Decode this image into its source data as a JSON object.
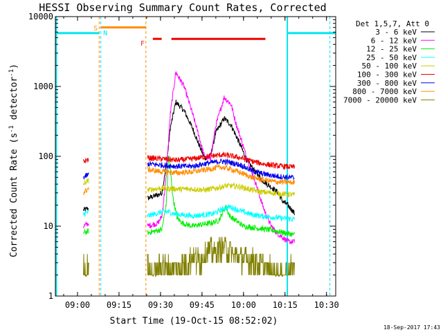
{
  "chart_data": {
    "type": "line",
    "title": "HESSI Observing Summary Count Rates, Corrected",
    "xlabel": "Start Time (19-Oct-15 08:52:02)",
    "ylabel_parts": [
      "Corrected Count Rate (s",
      "-1",
      " detector",
      "-1",
      ")"
    ],
    "y_scale": "log",
    "ylim": [
      1,
      10000
    ],
    "xlim_minutes": [
      -0.03,
      101.3
    ],
    "x_ticks": [
      {
        "label": "09:00",
        "minutes": 7.97
      },
      {
        "label": "09:15",
        "minutes": 22.97
      },
      {
        "label": "09:30",
        "minutes": 37.97
      },
      {
        "label": "09:45",
        "minutes": 52.97
      },
      {
        "label": "10:00",
        "minutes": 67.97
      },
      {
        "label": "10:15",
        "minutes": 82.97
      },
      {
        "label": "10:30",
        "minutes": 97.97
      }
    ],
    "y_ticks": [
      {
        "label": "1",
        "value": 1
      },
      {
        "label": "10",
        "value": 10
      },
      {
        "label": "100",
        "value": 100
      },
      {
        "label": "1000",
        "value": 1000
      },
      {
        "label": "10000",
        "value": 10000
      }
    ],
    "legend": {
      "placement": "right",
      "header": "Det 1,5,7, Att 0"
    },
    "markers": [
      {
        "label": "S",
        "color": "#ff8c00",
        "time_minutes": 16.0
      },
      {
        "label": "N",
        "color": "#00e5ee",
        "time_minutes": 16.5
      },
      {
        "label": "F",
        "color": "#ee2222",
        "time_minutes": 33.0
      }
    ],
    "night_lines_minutes": [
      16.4,
      83.8,
      99.2
    ],
    "saa_lines_minutes": [
      15.8,
      32.7
    ],
    "bars": [
      {
        "name": "eclipse",
        "color": "#00e5ee",
        "segments": [
          [
            0,
            15.9,
            5800
          ],
          [
            83.8,
            101.3,
            5800
          ]
        ]
      },
      {
        "name": "saa",
        "color": "#ff8c00",
        "segments": [
          [
            16.4,
            32.6,
            7000
          ]
        ]
      },
      {
        "name": "flare",
        "color": "#ee0000",
        "segments": [
          [
            35.2,
            38.4,
            4800
          ],
          [
            41.9,
            75.9,
            4800
          ]
        ]
      }
    ],
    "series": [
      {
        "name": "3 - 6 keV",
        "color": "#000000",
        "x": [
          10.1,
          12.0,
          33.2,
          37.0,
          38.5,
          40.2,
          41.5,
          43.5,
          46.5,
          49.6,
          51.8,
          53.8,
          56.0,
          58.0,
          61.0,
          63.5,
          65.2,
          67.0,
          69.0,
          71.0,
          73.0,
          75.0,
          76.5,
          78.5,
          80.5,
          82.0,
          84.0,
          85.5,
          86.5
        ],
        "y": [
          17,
          18,
          25,
          28,
          30,
          80,
          250,
          600,
          450,
          250,
          150,
          95,
          100,
          220,
          350,
          280,
          200,
          140,
          90,
          70,
          55,
          45,
          40,
          35,
          30,
          23,
          20,
          17,
          15
        ]
      },
      {
        "name": "6 - 12 keV",
        "color": "#ff00ff",
        "x": [
          10.1,
          12.0,
          33.2,
          37.0,
          38.5,
          40.0,
          41.5,
          43.5,
          46.5,
          49.6,
          51.8,
          53.8,
          56.0,
          58.0,
          61.0,
          63.5,
          65.2,
          67.0,
          69.0,
          71.0,
          73.0,
          74.5,
          76.0,
          78.0,
          80.0,
          82.0,
          84.0,
          86.5
        ],
        "y": [
          10,
          11,
          10,
          11,
          14,
          50,
          400,
          1600,
          1000,
          400,
          200,
          100,
          90,
          280,
          700,
          550,
          300,
          180,
          100,
          60,
          35,
          22,
          15,
          10,
          8,
          7,
          6,
          6
        ]
      },
      {
        "name": "12 - 25 keV",
        "color": "#00ee00",
        "x": [
          10.1,
          12.0,
          33.2,
          36.0,
          38.5,
          40.0,
          41.0,
          42.5,
          44.0,
          46.0,
          49.6,
          52.0,
          56.0,
          59.0,
          61.5,
          63.0,
          65.2,
          68.0,
          72.0,
          76.0,
          80.0,
          83.0,
          86.5
        ],
        "y": [
          8,
          8.5,
          8,
          8.5,
          9,
          20,
          110,
          25,
          13,
          11,
          10,
          10.5,
          11,
          12,
          19,
          14,
          12,
          10,
          9.5,
          9,
          8.5,
          8,
          7.5
        ]
      },
      {
        "name": "25 - 50 keV",
        "color": "#00ffff",
        "x": [
          10.1,
          12.0,
          33.2,
          36.0,
          38.5,
          41.0,
          43.0,
          46.0,
          49.6,
          53.0,
          57.0,
          61.0,
          63.0,
          66.0,
          70.0,
          74.0,
          78.0,
          82.0,
          86.5
        ],
        "y": [
          15,
          16,
          14,
          15,
          16,
          16,
          15,
          14.5,
          14,
          14.5,
          15,
          18,
          19,
          17,
          15,
          14,
          13.5,
          13,
          12.5
        ]
      },
      {
        "name": "50 - 100 keV",
        "color": "#cccc00",
        "x": [
          10.1,
          12.0,
          33.2,
          38.5,
          45.0,
          49.6,
          54.0,
          58.0,
          62.0,
          66.0,
          70.0,
          74.0,
          78.0,
          82.0,
          86.5
        ],
        "y": [
          40,
          45,
          33,
          35,
          34,
          34,
          33,
          35,
          38,
          37,
          34,
          31,
          30,
          29,
          28
        ]
      },
      {
        "name": "100 - 300 keV",
        "color": "#ee0000",
        "x": [
          10.1,
          12.0,
          33.2,
          38.5,
          44.0,
          49.6,
          55.0,
          60.0,
          63.0,
          67.0,
          71.0,
          75.0,
          80.0,
          86.5
        ],
        "y": [
          85,
          90,
          95,
          92,
          88,
          92,
          100,
          105,
          102,
          95,
          85,
          78,
          73,
          70
        ]
      },
      {
        "name": "300 - 800 keV",
        "color": "#0000ee",
        "x": [
          10.1,
          12.0,
          33.2,
          38.5,
          44.0,
          49.6,
          55.0,
          60.0,
          63.0,
          67.0,
          71.0,
          75.0,
          80.0,
          86.5
        ],
        "y": [
          50,
          55,
          78,
          75,
          72,
          72,
          80,
          85,
          82,
          75,
          62,
          56,
          52,
          49
        ]
      },
      {
        "name": "800 - 7000 keV",
        "color": "#ff8c00",
        "x": [
          10.1,
          12.0,
          33.2,
          38.5,
          44.0,
          49.6,
          55.0,
          60.0,
          63.0,
          67.0,
          71.0,
          75.0,
          80.0,
          86.5
        ],
        "y": [
          30,
          35,
          65,
          60,
          58,
          60,
          65,
          70,
          66,
          58,
          50,
          46,
          43,
          42
        ]
      },
      {
        "name": "7000 - 20000 keV",
        "color": "#808000",
        "x": [
          10.1,
          11.0,
          12.0,
          33.2,
          36.0,
          38.5,
          42.0,
          46.0,
          49.6,
          52.0,
          55.0,
          58.0,
          61.0,
          64.0,
          67.0,
          70.0,
          73.0,
          76.0,
          79.0,
          82.0,
          86.5
        ],
        "y": [
          3,
          2,
          3,
          2.5,
          2,
          3,
          2.2,
          2.8,
          3.5,
          3.2,
          4.5,
          4.2,
          5,
          4,
          3.5,
          3.2,
          3,
          2.5,
          2.2,
          2,
          2.5
        ]
      }
    ]
  },
  "footer": {
    "timestamp": "18-Sep-2017 17:43"
  }
}
